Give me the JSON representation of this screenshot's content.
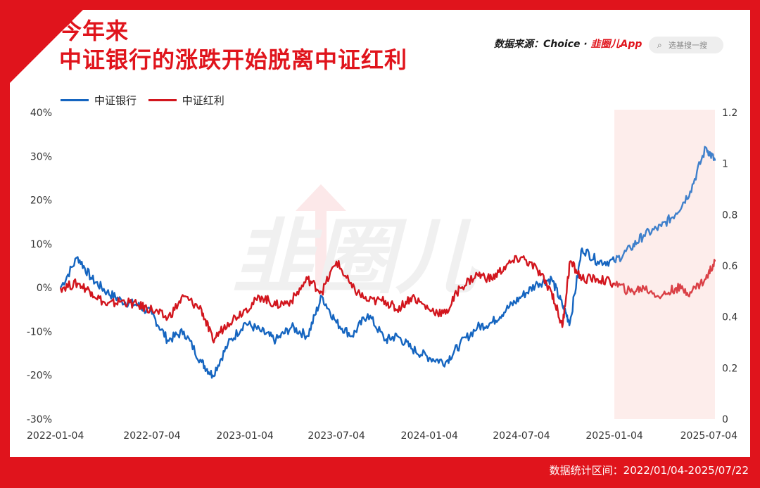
{
  "title_line1": "今年来",
  "title_line2": "中证银行的涨跌开始脱离中证红利",
  "source_label": "数据来源：Choice · ",
  "source_brand": "韭圈儿App",
  "search_placeholder": "选基搜一搜",
  "footer": "数据统计区间：2022/01/04-2025/07/22",
  "colors": {
    "bank": "#1565c0",
    "dividend": "#d2161e",
    "shade": "#fde9e7",
    "brand": "#e0141c"
  },
  "icons": {
    "search": "search-icon",
    "watermark": "watermark-logo"
  },
  "chart_data": {
    "type": "line",
    "title": "",
    "x": [
      "2022-01-04",
      "2022-02-07",
      "2022-03-07",
      "2022-04-06",
      "2022-05-05",
      "2022-06-06",
      "2022-07-04",
      "2022-08-04",
      "2022-09-05",
      "2022-10-10",
      "2022-11-01",
      "2022-12-01",
      "2023-01-04",
      "2023-02-06",
      "2023-03-06",
      "2023-04-06",
      "2023-05-08",
      "2023-06-05",
      "2023-07-04",
      "2023-08-04",
      "2023-09-04",
      "2023-10-09",
      "2023-11-01",
      "2023-12-01",
      "2024-01-04",
      "2024-02-05",
      "2024-03-04",
      "2024-04-08",
      "2024-05-06",
      "2024-06-04",
      "2024-07-04",
      "2024-08-05",
      "2024-09-02",
      "2024-09-23",
      "2024-10-08",
      "2024-11-01",
      "2024-12-02",
      "2025-01-04",
      "2025-02-05",
      "2025-03-03",
      "2025-04-07",
      "2025-05-06",
      "2025-06-03",
      "2025-07-04",
      "2025-07-22"
    ],
    "xticks": [
      "2022-01-04",
      "2022-07-04",
      "2023-01-04",
      "2023-07-04",
      "2024-01-04",
      "2024-07-04",
      "2025-01-04",
      "2025-07-04"
    ],
    "y_left": {
      "ticks": [
        "-30%",
        "-20%",
        "-10%",
        "0%",
        "10%",
        "20%",
        "30%",
        "40%"
      ],
      "lim": [
        -30,
        40
      ],
      "unit": "%"
    },
    "y_right": {
      "ticks": [
        "0",
        "0.2",
        "0.4",
        "0.6",
        "0.8",
        "1",
        "1.2"
      ],
      "lim": [
        0,
        1.2
      ]
    },
    "shaded_range": [
      "2025-01-04",
      "2025-07-22"
    ],
    "series": [
      {
        "name": "中证银行",
        "axis": "left",
        "values": [
          0,
          7,
          2,
          -1,
          -3,
          -4,
          -6,
          -12,
          -10,
          -17,
          -20,
          -13,
          -8,
          -10,
          -12,
          -9,
          -11,
          -2,
          -8,
          -11,
          -6,
          -12,
          -11,
          -14,
          -16,
          -17,
          -13,
          -9,
          -8,
          -5,
          -2,
          1,
          2,
          -4,
          -8,
          9,
          6,
          6,
          9,
          12,
          14,
          17,
          22,
          32,
          29
        ]
      },
      {
        "name": "中证红利",
        "axis": "left",
        "values": [
          0,
          1,
          -1,
          -4,
          -3,
          -4,
          -5,
          -7,
          -2,
          -5,
          -12,
          -8,
          -5,
          -2,
          -4,
          -3,
          2,
          -1,
          6,
          0,
          -3,
          -3,
          -5,
          -2,
          -5,
          -6,
          0,
          3,
          2,
          5,
          7,
          4,
          -1,
          -9,
          6,
          2,
          2,
          1,
          -1,
          0,
          -2,
          0,
          -1,
          2,
          6
        ]
      }
    ]
  }
}
